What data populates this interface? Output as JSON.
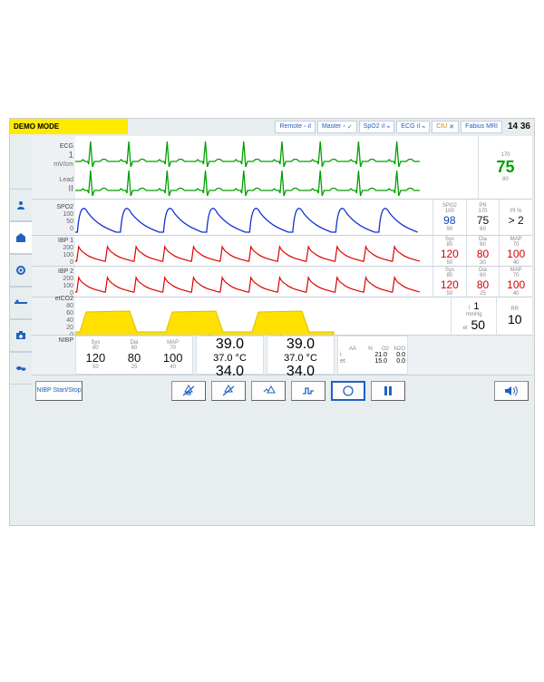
{
  "topbar": {
    "demo_label": "DEMO MODE",
    "chips": [
      {
        "label": "Remote"
      },
      {
        "label": "Master"
      },
      {
        "label": "SpO2"
      },
      {
        "label": "ECG"
      },
      {
        "label": "CIU"
      },
      {
        "label": "Fabius MRI"
      }
    ],
    "time": "14 36"
  },
  "colors": {
    "ecg": "#00a000",
    "spo2": "#1030d0",
    "ibp": "#e00000",
    "co2": "#ffe000",
    "bg": "#ffffff"
  },
  "rail": {
    "items": [
      {
        "name": "person-icon"
      },
      {
        "name": "home-icon",
        "active": true
      },
      {
        "name": "gear-icon"
      },
      {
        "name": "bed-icon"
      },
      {
        "name": "kit-icon"
      },
      {
        "name": "cloud-icon"
      }
    ]
  },
  "ecg": {
    "label": "ECG",
    "scale": "1",
    "unit": "mV/cm",
    "lead": "Lead",
    "lead_val": "II",
    "hr_value": "75",
    "hr_hi": "170",
    "hr_lo": "80"
  },
  "spo2": {
    "label": "SPO2",
    "ticks": [
      "100",
      "50",
      "0"
    ],
    "cols": [
      {
        "t": "SPO2",
        "v": "98",
        "hi": "100",
        "lo": "90"
      },
      {
        "t": "PR",
        "v": "75",
        "hi": "170",
        "lo": "60"
      },
      {
        "t": "PI %",
        "v": "> 2",
        "hi": "",
        "lo": ""
      }
    ]
  },
  "ibp1": {
    "label": "IBP 1",
    "ticks": [
      "200",
      "150",
      "100",
      "50",
      "0"
    ],
    "unit": "mmHg",
    "cols": [
      {
        "t": "Sys",
        "v": "120",
        "hi": "80",
        "lo": "50"
      },
      {
        "t": "Dia",
        "v": "80",
        "hi": "60",
        "lo": "30"
      },
      {
        "t": "MAP",
        "v": "100",
        "hi": "70",
        "lo": "40"
      }
    ]
  },
  "ibp2": {
    "label": "IBP 2",
    "ticks": [
      "200",
      "150",
      "100",
      "50",
      "0"
    ],
    "unit": "mmHg",
    "cols": [
      {
        "t": "Sys",
        "v": "120",
        "hi": "80",
        "lo": "50"
      },
      {
        "t": "Dia",
        "v": "80",
        "hi": "60",
        "lo": "25"
      },
      {
        "t": "MAP",
        "v": "100",
        "hi": "70",
        "lo": "40"
      }
    ]
  },
  "co2": {
    "label": "etCO2",
    "ticks": [
      "80",
      "60",
      "40",
      "20",
      "0"
    ],
    "unit_label": "mmHg",
    "i_label": "i",
    "i_val": "1",
    "et_label": "et",
    "et_val": "50",
    "rr_label": "RR",
    "rr_val": "10"
  },
  "nibp": {
    "label": "NIBP",
    "cols": [
      {
        "t": "Sys",
        "v": "120",
        "hi": "80",
        "lo": "50"
      },
      {
        "t": "Dia",
        "v": "80",
        "hi": "60",
        "lo": "25"
      },
      {
        "t": "MAP",
        "v": "100",
        "hi": "70",
        "lo": "40"
      }
    ],
    "temp1": {
      "t": "Temp1",
      "v": "37.0 °C",
      "hi": "39.0",
      "lo": "34.0"
    },
    "temp2": {
      "t": "Temp2",
      "v": "37.0 °C",
      "hi": "39.0",
      "lo": "34.0"
    },
    "aa": {
      "hdr": [
        "AA",
        "%",
        "O2",
        "N2O"
      ],
      "i_label": "i",
      "i": [
        "",
        "21.0",
        "0.0"
      ],
      "et_label": "et",
      "et": [
        "",
        "15.0",
        "0.0"
      ]
    }
  },
  "buttons": {
    "nibp": "NIBP Start/Stop"
  }
}
